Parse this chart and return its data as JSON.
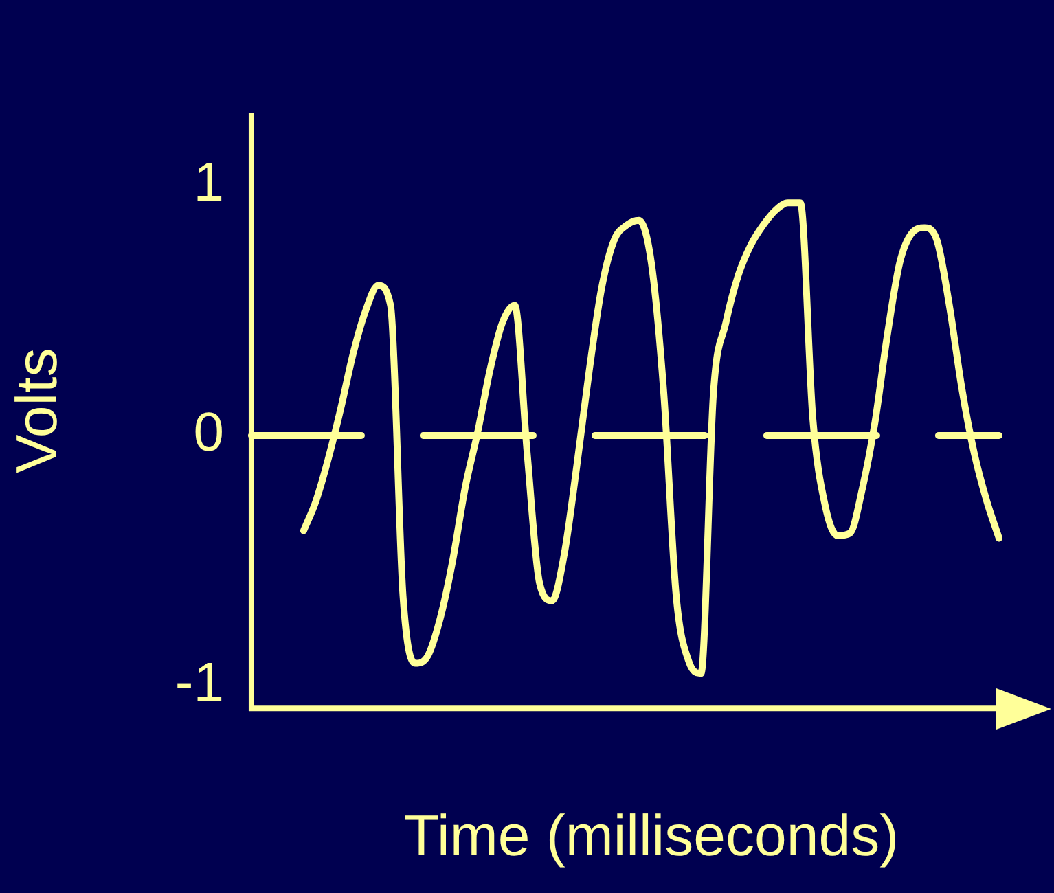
{
  "chart_data": {
    "type": "line",
    "xlabel": "Time (milliseconds)",
    "ylabel": "Volts",
    "categories": [
      null,
      null,
      null,
      null,
      null,
      null,
      null,
      null,
      null,
      null,
      null,
      null,
      null,
      null,
      null,
      null,
      null,
      null,
      null,
      null,
      null,
      null,
      null,
      null,
      null,
      null,
      null,
      null,
      null,
      null,
      null,
      null,
      null,
      null,
      null,
      null,
      null,
      null,
      null,
      null,
      null,
      null,
      null,
      null,
      null,
      null,
      null,
      null,
      null,
      null,
      null,
      null,
      null,
      null,
      null,
      null,
      null
    ],
    "series": [
      {
        "color": "#ffff99",
        "values": [
          -0.38,
          -0.26,
          -0.09,
          0.11,
          0.33,
          0.5,
          0.6,
          0.52,
          -0.64,
          -0.91,
          -0.88,
          -0.73,
          -0.5,
          -0.21,
          0.01,
          0.26,
          0.45,
          0.52,
          -0.07,
          -0.59,
          -0.66,
          -0.47,
          -0.12,
          0.26,
          0.59,
          0.78,
          0.84,
          0.86,
          0.69,
          0.17,
          -0.64,
          -0.9,
          -0.95,
          0.17,
          0.45,
          0.64,
          0.76,
          0.84,
          0.9,
          0.93,
          0.93,
          0.07,
          -0.28,
          -0.4,
          -0.39,
          -0.21,
          0.05,
          0.4,
          0.69,
          0.81,
          0.83,
          0.78,
          0.52,
          0.19,
          -0.07,
          -0.26,
          -0.41
        ]
      }
    ],
    "ylim": [
      -1.09,
      1.29
    ],
    "yticks": [
      -1,
      0,
      1
    ],
    "ref_lines": [
      {
        "axis": "y",
        "value": 0,
        "color": "#ffff99",
        "line_style": "dashed"
      }
    ],
    "tick_labels": "y",
    "grid": false,
    "legend": false,
    "marker": "none",
    "line_style": "solid"
  }
}
